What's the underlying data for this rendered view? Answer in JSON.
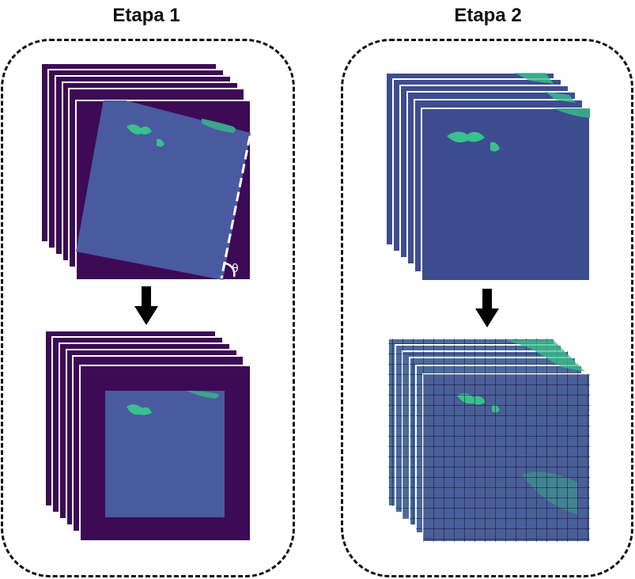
{
  "stages": [
    {
      "title": "Etapa 1"
    },
    {
      "title": "Etapa 2"
    }
  ],
  "rotation_symbol": "θ",
  "colors": {
    "frame_dark": "#3d0a55",
    "frame_border": "#ffffff",
    "image_fill": "#3d4d8f",
    "image_fill_light": "#4a5aa0",
    "vegetation": "#39c08c",
    "grid_line": "#0d1030",
    "panel_border": "#111111",
    "arrow": "#000000"
  }
}
